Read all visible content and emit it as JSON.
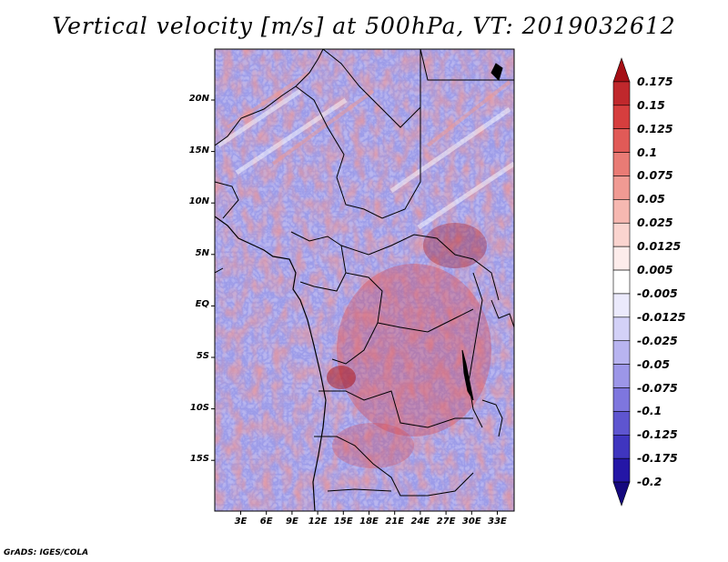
{
  "title": "Vertical velocity [m/s] at 500hPa, VT: 2019032612",
  "footer": "GrADS: IGES/COLA",
  "map": {
    "lat_labels": [
      "20N",
      "15N",
      "10N",
      "5N",
      "EQ",
      "5S",
      "10S",
      "15S"
    ],
    "lon_labels": [
      "3E",
      "6E",
      "9E",
      "12E",
      "15E",
      "18E",
      "21E",
      "24E",
      "27E",
      "30E",
      "33E"
    ]
  },
  "colorbar": {
    "labels": [
      "0.175",
      "0.15",
      "0.125",
      "0.1",
      "0.075",
      "0.05",
      "0.025",
      "0.0125",
      "0.005",
      "-0.005",
      "-0.0125",
      "-0.025",
      "-0.05",
      "-0.075",
      "-0.1",
      "-0.125",
      "-0.175",
      "-0.2"
    ],
    "colors": [
      "#a50f15",
      "#c0282c",
      "#d63e3e",
      "#e15a57",
      "#e97b75",
      "#f09a93",
      "#f6b8b1",
      "#fad4cf",
      "#fdeceb",
      "#ffffff",
      "#ebeafc",
      "#d3d1f7",
      "#b8b4f0",
      "#9c96e8",
      "#7e76de",
      "#5e55d0",
      "#3f35bf",
      "#2416a6",
      "#15087e"
    ]
  }
}
